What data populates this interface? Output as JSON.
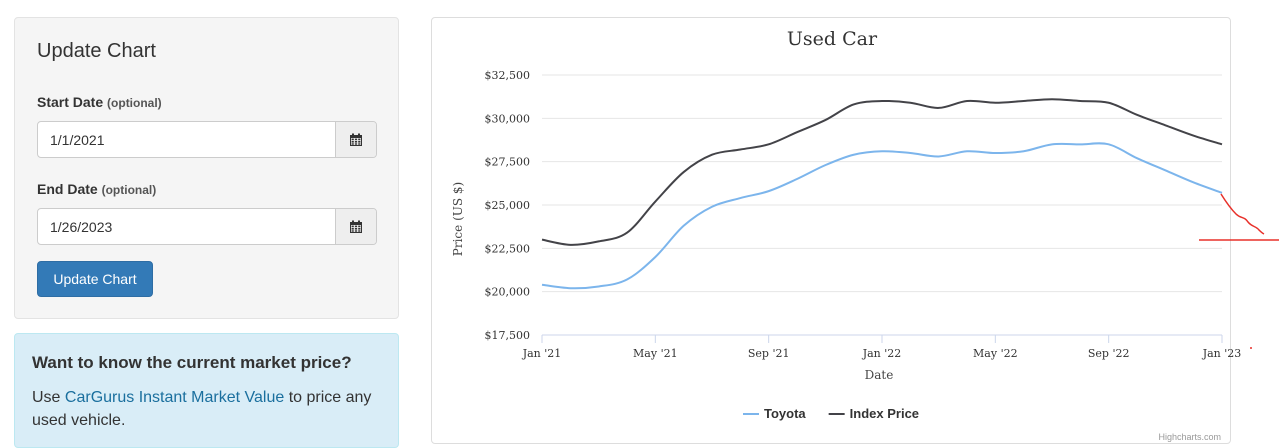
{
  "form": {
    "title": "Update Chart",
    "start_label": "Start Date",
    "start_optional": "(optional)",
    "start_value": "1/1/2021",
    "end_label": "End Date",
    "end_optional": "(optional)",
    "end_value": "1/26/2023",
    "calendar_icon": "calendar-icon",
    "submit_label": "Update Chart",
    "submit_color": "#337ab7"
  },
  "info": {
    "title": "Want to know the current market price?",
    "text_before": "Use ",
    "link_text": "CarGurus Instant Market Value",
    "text_after": " to price any used vehicle."
  },
  "chart_data": {
    "type": "line",
    "title": "Used Car",
    "xlabel": "Date",
    "ylabel": "Price (US $)",
    "x": [
      "2021-01",
      "2021-02",
      "2021-03",
      "2021-04",
      "2021-05",
      "2021-06",
      "2021-07",
      "2021-08",
      "2021-09",
      "2021-10",
      "2021-11",
      "2021-12",
      "2022-01",
      "2022-02",
      "2022-03",
      "2022-04",
      "2022-05",
      "2022-06",
      "2022-07",
      "2022-08",
      "2022-09",
      "2022-10",
      "2022-11",
      "2022-12",
      "2023-01"
    ],
    "x_ticks": [
      "Jan '21",
      "May '21",
      "Sep '21",
      "Jan '22",
      "May '22",
      "Sep '22",
      "Jan '23"
    ],
    "y_ticks": [
      "$17,500",
      "$20,000",
      "$22,500",
      "$25,000",
      "$27,500",
      "$30,000",
      "$32,500"
    ],
    "ylim": [
      17500,
      32500
    ],
    "grid": true,
    "legend_position": "bottom-center",
    "series": [
      {
        "name": "Toyota",
        "color": "#7cb5ec",
        "values": [
          20400,
          20200,
          20300,
          20700,
          22000,
          23800,
          24900,
          25400,
          25800,
          26500,
          27300,
          27900,
          28100,
          28000,
          27800,
          28100,
          28000,
          28100,
          28500,
          28500,
          28500,
          27700,
          27000,
          26300,
          25700
        ]
      },
      {
        "name": "Index Price",
        "color": "#434348",
        "values": [
          23000,
          22700,
          22900,
          23400,
          25200,
          26900,
          27900,
          28200,
          28500,
          29200,
          29900,
          30800,
          31000,
          30900,
          30600,
          31000,
          30900,
          31000,
          31100,
          31000,
          30900,
          30200,
          29600,
          29000,
          28500
        ]
      }
    ],
    "credits": "Highcharts.com"
  }
}
